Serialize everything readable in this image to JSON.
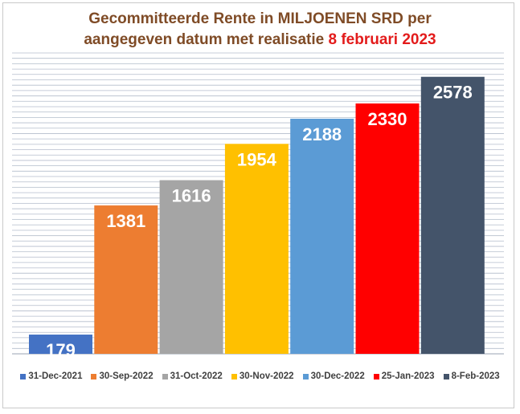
{
  "chart_data": {
    "type": "bar",
    "title_line1": "Gecommitteerde Rente in MILJOENEN SRD per",
    "title_line2": "aangegeven datum met realisatie",
    "title_highlight": "8 februari 2023",
    "categories": [
      "31-Dec-2021",
      "30-Sep-2022",
      "31-Oct-2022",
      "30-Nov-2022",
      "30-Dec-2022",
      "25-Jan-2023",
      "8-Feb-2023"
    ],
    "values": [
      179,
      1381,
      1616,
      1954,
      2188,
      2330,
      2578
    ],
    "colors": [
      "#4472c4",
      "#ed7d31",
      "#a5a5a5",
      "#ffc000",
      "#5b9bd5",
      "#ff0000",
      "#44546a"
    ],
    "ylim": [
      0,
      2800
    ],
    "xlabel": "",
    "ylabel": "",
    "grid": true,
    "legend_position": "bottom"
  },
  "colors": {
    "title": "#7f4b26",
    "title_highlight": "#e31b1b",
    "gridline": "#b4bdcc",
    "label_text": "#ffffff"
  }
}
